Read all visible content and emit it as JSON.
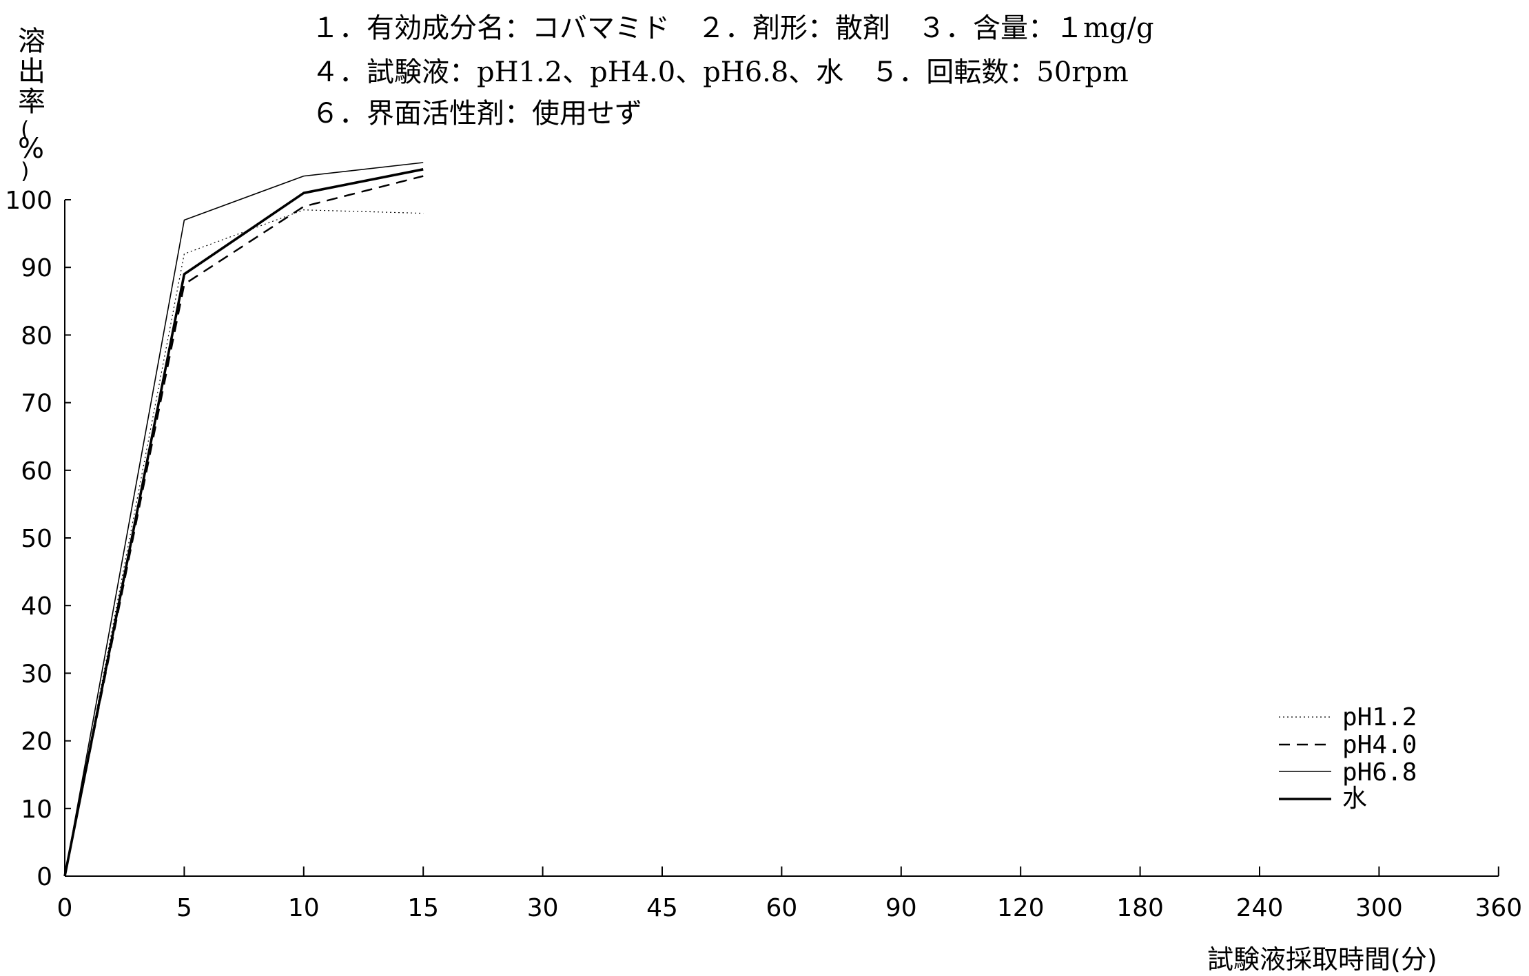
{
  "header": {
    "line1": "１．有効成分名：コバマミド　２．剤形：散剤　３．含量：１mg/g",
    "line2": "４．試験液：pH1.2、pH4.0、pH6.8、水　５．回転数：50rpm",
    "line3": "６．界面活性剤：使用せず"
  },
  "chart_data": {
    "type": "line",
    "ylabel_chars": [
      "溶",
      "出",
      "率",
      "(",
      "%",
      ")"
    ],
    "xlabel": "試験液採取時間(分)",
    "x_categories": [
      "0",
      "5",
      "10",
      "15",
      "30",
      "45",
      "60",
      "90",
      "120",
      "180",
      "240",
      "300",
      "360"
    ],
    "y_ticks": [
      0,
      10,
      20,
      30,
      40,
      50,
      60,
      70,
      80,
      90,
      100
    ],
    "ylim": [
      0,
      100
    ],
    "grid": false,
    "legend_position": "bottom-right",
    "series": [
      {
        "name": "pH1.2",
        "style": "dotted",
        "width": 1.2,
        "x": [
          "0",
          "5",
          "10",
          "15"
        ],
        "values": [
          0,
          92.0,
          98.5,
          98.0
        ]
      },
      {
        "name": "pH4.0",
        "style": "dashed",
        "width": 2.5,
        "x": [
          "0",
          "5",
          "10",
          "15"
        ],
        "values": [
          0,
          87.5,
          99.0,
          103.5
        ]
      },
      {
        "name": "pH6.8",
        "style": "solid",
        "width": 1.6,
        "x": [
          "0",
          "5",
          "10",
          "15"
        ],
        "values": [
          0,
          97.0,
          103.5,
          105.5
        ]
      },
      {
        "name": "水",
        "style": "solid",
        "width": 3.6,
        "x": [
          "0",
          "5",
          "10",
          "15"
        ],
        "values": [
          0,
          89.0,
          101.0,
          104.5
        ]
      }
    ]
  }
}
